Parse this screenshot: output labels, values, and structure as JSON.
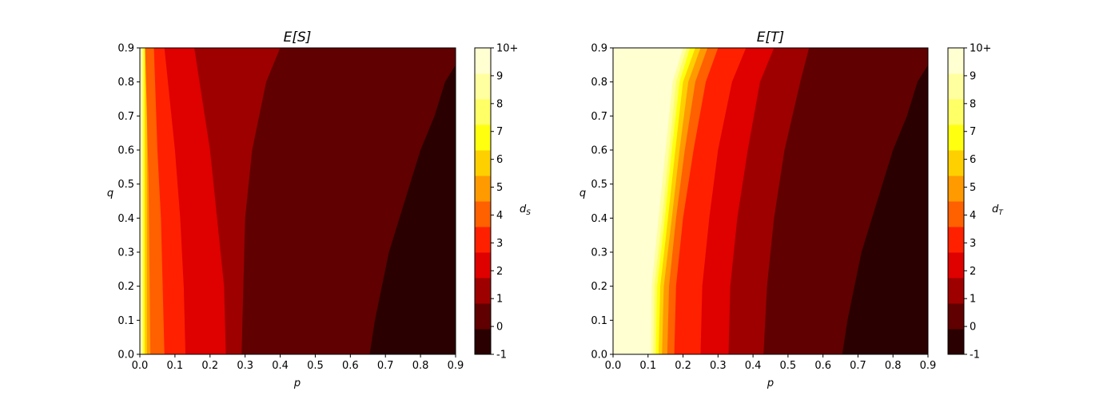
{
  "chart_data": [
    {
      "type": "heatmap",
      "subtype": "filled-contour",
      "title": "E[S]",
      "xlabel": "p",
      "ylabel": "q",
      "xlim": [
        0.0,
        0.9
      ],
      "ylim": [
        0.0,
        0.9
      ],
      "xticks": [
        "0.0",
        "0.1",
        "0.2",
        "0.3",
        "0.4",
        "0.5",
        "0.6",
        "0.7",
        "0.8",
        "0.9"
      ],
      "yticks": [
        "0.0",
        "0.1",
        "0.2",
        "0.3",
        "0.4",
        "0.5",
        "0.6",
        "0.7",
        "0.8",
        "0.9"
      ],
      "colorbar": {
        "label": "d_S",
        "label_main": "d",
        "label_sub": "S",
        "ticks": [
          "-1",
          "0",
          "1",
          "2",
          "3",
          "4",
          "5",
          "6",
          "7",
          "8",
          "9",
          "10+"
        ],
        "colormap": "hot",
        "levels": [
          -1,
          0,
          1,
          2,
          3,
          4,
          5,
          6,
          7,
          8,
          9,
          10
        ]
      },
      "contour_boundaries": [
        {
          "level": 10,
          "points": [
            [
              0.0,
              0.0
            ],
            [
              0.0,
              0.9
            ]
          ]
        },
        {
          "level": 9,
          "points": [
            [
              0.003,
              0.0
            ],
            [
              0.003,
              0.9
            ]
          ]
        },
        {
          "level": 8,
          "points": [
            [
              0.007,
              0.0
            ],
            [
              0.007,
              0.9
            ]
          ]
        },
        {
          "level": 7,
          "points": [
            [
              0.01,
              0.0
            ],
            [
              0.01,
              0.9
            ]
          ]
        },
        {
          "level": 6,
          "points": [
            [
              0.014,
              0.0
            ],
            [
              0.014,
              0.9
            ]
          ]
        },
        {
          "level": 5,
          "points": [
            [
              0.02,
              0.0
            ],
            [
              0.02,
              0.9
            ]
          ]
        },
        {
          "level": 4,
          "points": [
            [
              0.03,
              0.0
            ],
            [
              0.025,
              0.5
            ],
            [
              0.015,
              0.9
            ]
          ]
        },
        {
          "level": 3,
          "points": [
            [
              0.07,
              0.0
            ],
            [
              0.065,
              0.2
            ],
            [
              0.06,
              0.4
            ],
            [
              0.05,
              0.6
            ],
            [
              0.04,
              0.9
            ]
          ]
        },
        {
          "level": 2,
          "points": [
            [
              0.13,
              0.0
            ],
            [
              0.125,
              0.2
            ],
            [
              0.115,
              0.4
            ],
            [
              0.1,
              0.6
            ],
            [
              0.08,
              0.8
            ],
            [
              0.07,
              0.9
            ]
          ]
        },
        {
          "level": 1,
          "points": [
            [
              0.245,
              0.0
            ],
            [
              0.24,
              0.2
            ],
            [
              0.22,
              0.4
            ],
            [
              0.2,
              0.6
            ],
            [
              0.17,
              0.8
            ],
            [
              0.155,
              0.9
            ]
          ]
        },
        {
          "level": 0,
          "points": [
            [
              0.29,
              0.0
            ],
            [
              0.295,
              0.2
            ],
            [
              0.3,
              0.4
            ],
            [
              0.32,
              0.6
            ],
            [
              0.36,
              0.8
            ],
            [
              0.4,
              0.9
            ]
          ]
        },
        {
          "level": -1,
          "points": [
            [
              0.655,
              0.0
            ],
            [
              0.67,
              0.1
            ],
            [
              0.69,
              0.2
            ],
            [
              0.71,
              0.3
            ],
            [
              0.74,
              0.4
            ],
            [
              0.77,
              0.5
            ],
            [
              0.8,
              0.6
            ],
            [
              0.84,
              0.7
            ],
            [
              0.87,
              0.8
            ],
            [
              0.9,
              0.85
            ]
          ]
        }
      ]
    },
    {
      "type": "heatmap",
      "subtype": "filled-contour",
      "title": "E[T]",
      "xlabel": "p",
      "ylabel": "q",
      "xlim": [
        0.0,
        0.9
      ],
      "ylim": [
        0.0,
        0.9
      ],
      "xticks": [
        "0.0",
        "0.1",
        "0.2",
        "0.3",
        "0.4",
        "0.5",
        "0.6",
        "0.7",
        "0.8",
        "0.9"
      ],
      "yticks": [
        "0.0",
        "0.1",
        "0.2",
        "0.3",
        "0.4",
        "0.5",
        "0.6",
        "0.7",
        "0.8",
        "0.9"
      ],
      "colorbar": {
        "label": "d_T",
        "label_main": "d",
        "label_sub": "T",
        "ticks": [
          "-1",
          "0",
          "1",
          "2",
          "3",
          "4",
          "5",
          "6",
          "7",
          "8",
          "9",
          "10+"
        ],
        "colormap": "hot",
        "levels": [
          -1,
          0,
          1,
          2,
          3,
          4,
          5,
          6,
          7,
          8,
          9,
          10
        ]
      },
      "contour_boundaries": [
        {
          "level": 10,
          "points": [
            [
              0.0,
              0.0
            ],
            [
              0.0,
              0.9
            ]
          ]
        },
        {
          "level": 9,
          "points": [
            [
              0.108,
              0.0
            ],
            [
              0.11,
              0.2
            ],
            [
              0.13,
              0.4
            ],
            [
              0.15,
              0.6
            ],
            [
              0.17,
              0.8
            ],
            [
              0.2,
              0.9
            ]
          ]
        },
        {
          "level": 8,
          "points": [
            [
              0.115,
              0.0
            ],
            [
              0.118,
              0.2
            ],
            [
              0.14,
              0.4
            ],
            [
              0.16,
              0.6
            ],
            [
              0.18,
              0.8
            ],
            [
              0.21,
              0.9
            ]
          ]
        },
        {
          "level": 7,
          "points": [
            [
              0.122,
              0.0
            ],
            [
              0.126,
              0.2
            ],
            [
              0.148,
              0.4
            ],
            [
              0.168,
              0.6
            ],
            [
              0.19,
              0.8
            ],
            [
              0.22,
              0.9
            ]
          ]
        },
        {
          "level": 6,
          "points": [
            [
              0.13,
              0.0
            ],
            [
              0.135,
              0.2
            ],
            [
              0.157,
              0.4
            ],
            [
              0.178,
              0.6
            ],
            [
              0.2,
              0.8
            ],
            [
              0.235,
              0.9
            ]
          ]
        },
        {
          "level": 5,
          "points": [
            [
              0.14,
              0.0
            ],
            [
              0.145,
              0.2
            ],
            [
              0.168,
              0.4
            ],
            [
              0.19,
              0.6
            ],
            [
              0.215,
              0.8
            ],
            [
              0.25,
              0.9
            ]
          ]
        },
        {
          "level": 4,
          "points": [
            [
              0.155,
              0.0
            ],
            [
              0.16,
              0.2
            ],
            [
              0.18,
              0.4
            ],
            [
              0.205,
              0.6
            ],
            [
              0.235,
              0.8
            ],
            [
              0.27,
              0.9
            ]
          ]
        },
        {
          "level": 3,
          "points": [
            [
              0.175,
              0.0
            ],
            [
              0.18,
              0.2
            ],
            [
              0.2,
              0.4
            ],
            [
              0.23,
              0.6
            ],
            [
              0.265,
              0.8
            ],
            [
              0.3,
              0.9
            ]
          ]
        },
        {
          "level": 2,
          "points": [
            [
              0.25,
              0.0
            ],
            [
              0.255,
              0.2
            ],
            [
              0.275,
              0.4
            ],
            [
              0.3,
              0.6
            ],
            [
              0.34,
              0.8
            ],
            [
              0.38,
              0.9
            ]
          ]
        },
        {
          "level": 1,
          "points": [
            [
              0.33,
              0.0
            ],
            [
              0.335,
              0.2
            ],
            [
              0.355,
              0.4
            ],
            [
              0.385,
              0.6
            ],
            [
              0.42,
              0.8
            ],
            [
              0.46,
              0.9
            ]
          ]
        },
        {
          "level": 0,
          "points": [
            [
              0.43,
              0.0
            ],
            [
              0.44,
              0.2
            ],
            [
              0.46,
              0.4
            ],
            [
              0.49,
              0.6
            ],
            [
              0.535,
              0.8
            ],
            [
              0.56,
              0.9
            ]
          ]
        },
        {
          "level": -1,
          "points": [
            [
              0.655,
              0.0
            ],
            [
              0.67,
              0.1
            ],
            [
              0.69,
              0.2
            ],
            [
              0.71,
              0.3
            ],
            [
              0.74,
              0.4
            ],
            [
              0.77,
              0.5
            ],
            [
              0.8,
              0.6
            ],
            [
              0.84,
              0.7
            ],
            [
              0.87,
              0.8
            ],
            [
              0.9,
              0.85
            ]
          ]
        }
      ]
    }
  ],
  "colors": {
    "-1": "#2a0000",
    "0": "#600000",
    "1": "#9e0000",
    "2": "#df0000",
    "3": "#ff2000",
    "4": "#ff6000",
    "5": "#ff9a00",
    "6": "#ffd000",
    "7": "#ffff10",
    "8": "#ffff66",
    "9": "#ffffa0",
    "10": "#ffffd2"
  }
}
